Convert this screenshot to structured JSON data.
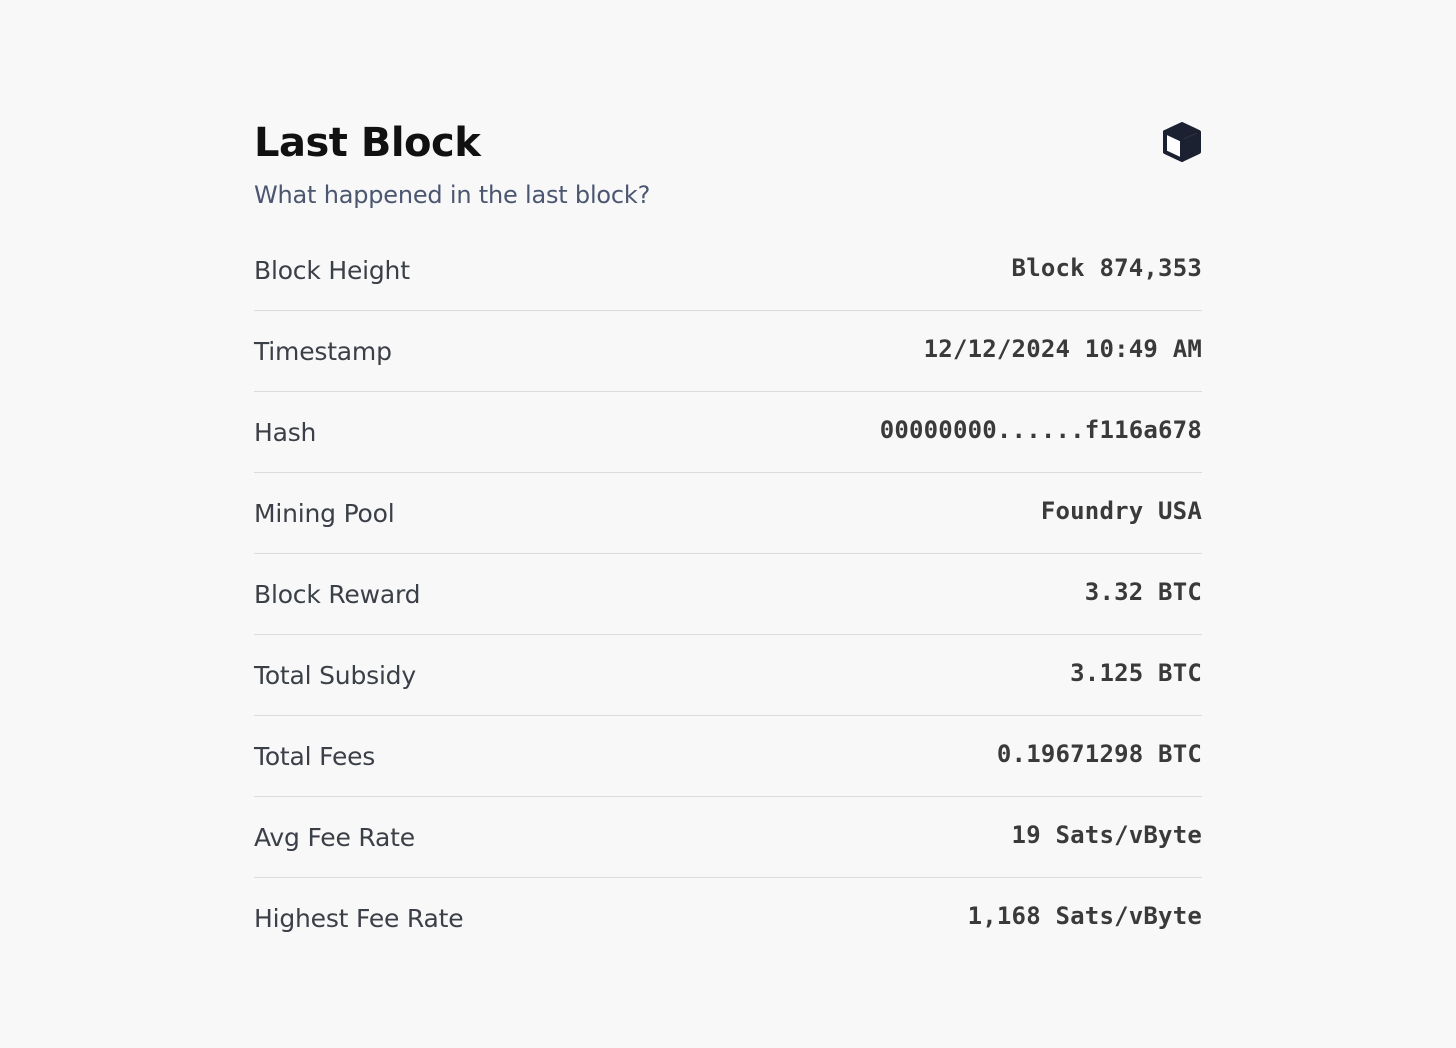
{
  "header": {
    "title": "Last Block",
    "subtitle": "What happened in the last block?",
    "icon": "cube-icon"
  },
  "colors": {
    "background": "#f8f8f8",
    "title": "#111111",
    "subtitle": "#4b5670",
    "label": "#3b3f47",
    "value": "#3a3a3a",
    "divider": "#dcdcdc"
  },
  "rows": [
    {
      "label": "Block Height",
      "value": "Block 874,353"
    },
    {
      "label": "Timestamp",
      "value": "12/12/2024 10:49 AM"
    },
    {
      "label": "Hash",
      "value": "00000000......f116a678"
    },
    {
      "label": "Mining Pool",
      "value": "Foundry USA"
    },
    {
      "label": "Block Reward",
      "value": "3.32 BTC"
    },
    {
      "label": "Total Subsidy",
      "value": "3.125 BTC"
    },
    {
      "label": "Total Fees",
      "value": "0.19671298 BTC"
    },
    {
      "label": "Avg Fee Rate",
      "value": "19 Sats/vByte"
    },
    {
      "label": "Highest Fee Rate",
      "value": "1,168 Sats/vByte"
    }
  ]
}
